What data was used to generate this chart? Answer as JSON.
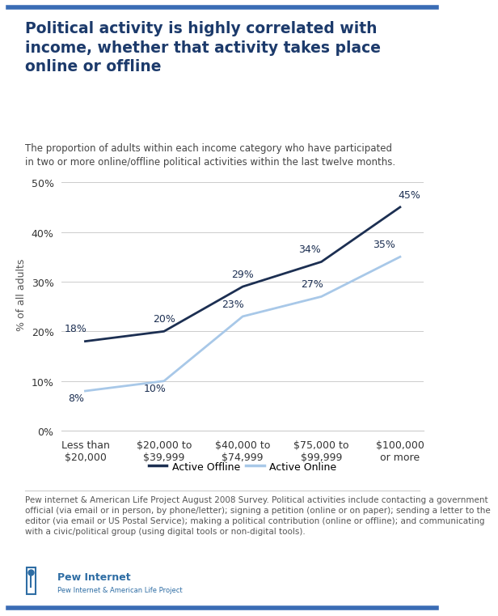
{
  "title": "Political activity is highly correlated with\nincome, whether that activity takes place\nonline or offline",
  "subtitle": "The proportion of adults within each income category who have participated\nin two or more online/offline political activities within the last twelve months.",
  "categories": [
    "Less than\n$20,000",
    "$20,000 to\n$39,999",
    "$40,000 to\n$74,999",
    "$75,000 to\n$99,999",
    "$100,000\nor more"
  ],
  "offline_values": [
    18,
    20,
    29,
    34,
    45
  ],
  "online_values": [
    8,
    10,
    23,
    27,
    35
  ],
  "offline_color": "#1c2f52",
  "online_color": "#a8c8e8",
  "ylabel": "% of all adults",
  "ylim": [
    0,
    55
  ],
  "yticks": [
    0,
    10,
    20,
    30,
    40,
    50
  ],
  "ytick_labels": [
    "0%",
    "10%",
    "20%",
    "30%",
    "40%",
    "50%"
  ],
  "legend_offline": "Active Offline",
  "legend_online": "Active Online",
  "footnote": "Pew internet & American Life Project August 2008 Survey. Political activities include contacting a government\nofficial (via email or in person, by phone/letter); signing a petition (online or on paper); sending a letter to the\neditor (via email or US Postal Service); making a political contribution (online or offline); and communicating\nwith a civic/political group (using digital tools or non-digital tools).",
  "title_color": "#1c3a6b",
  "subtitle_color": "#444444",
  "footnote_color": "#555555",
  "background_color": "#ffffff",
  "grid_color": "#cccccc",
  "offline_label_offsets": [
    [
      -0.12,
      1.5
    ],
    [
      0.0,
      1.5
    ],
    [
      0.0,
      1.5
    ],
    [
      -0.15,
      1.5
    ],
    [
      0.12,
      1.5
    ]
  ],
  "online_label_offsets": [
    [
      -0.12,
      -2.5
    ],
    [
      -0.12,
      -2.5
    ],
    [
      -0.12,
      1.5
    ],
    [
      -0.12,
      1.5
    ],
    [
      -0.2,
      1.5
    ]
  ],
  "accent_bar_color": "#3a6cb5",
  "pew_blue": "#2e6da4"
}
